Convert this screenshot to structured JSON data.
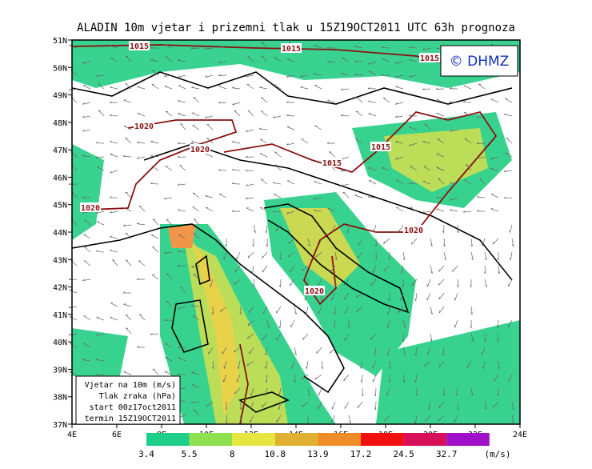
{
  "map": {
    "title": "ALADIN 10m vjetar i prizemni tlak u 15Z19OCT2011 UTC 63h prognoza",
    "logo": "© DHMZ",
    "lat_lim": [
      37,
      51
    ],
    "lon_lim": [
      4,
      24
    ],
    "lat_ticks": [
      {
        "value": 51,
        "label": "51N"
      },
      {
        "value": 50,
        "label": "50N"
      },
      {
        "value": 49,
        "label": "49N"
      },
      {
        "value": 48,
        "label": "48N"
      },
      {
        "value": 47,
        "label": "47N"
      },
      {
        "value": 46,
        "label": "46N"
      },
      {
        "value": 45,
        "label": "45N"
      },
      {
        "value": 44,
        "label": "44N"
      },
      {
        "value": 43,
        "label": "43N"
      },
      {
        "value": 42,
        "label": "42N"
      },
      {
        "value": 41,
        "label": "41N"
      },
      {
        "value": 40,
        "label": "40N"
      },
      {
        "value": 39,
        "label": "39N"
      },
      {
        "value": 38,
        "label": "38N"
      },
      {
        "value": 37,
        "label": "37N"
      }
    ],
    "lon_ticks": [
      {
        "value": 4,
        "label": "4E"
      },
      {
        "value": 6,
        "label": "6E"
      },
      {
        "value": 8,
        "label": "8E"
      },
      {
        "value": 10,
        "label": "10E"
      },
      {
        "value": 12,
        "label": "12E"
      },
      {
        "value": 14,
        "label": "14E"
      },
      {
        "value": 16,
        "label": "16E"
      },
      {
        "value": 18,
        "label": "18E"
      },
      {
        "value": 20,
        "label": "20E"
      },
      {
        "value": 22,
        "label": "22E"
      },
      {
        "value": 24,
        "label": "24E"
      }
    ],
    "isobar_labels": [
      "1015",
      "1015",
      "1015",
      "1020",
      "1020",
      "1015",
      "1015",
      "1020",
      "1020",
      "1020"
    ],
    "info": [
      "Vjetar na 10m (m/s)",
      "Tlak zraka (hPa)",
      "start 00z17oct2011",
      "termin 15Z19OCT2011"
    ],
    "colorbar": {
      "levels": [
        3.4,
        5.5,
        8,
        10.8,
        13.9,
        17.2,
        24.5,
        32.7
      ],
      "colors": [
        "#1ecf8a",
        "#8fe050",
        "#e6e640",
        "#e0b030",
        "#f08c28",
        "#f01010",
        "#d8105a",
        "#a010c8"
      ],
      "unit": "(m/s)"
    }
  }
}
